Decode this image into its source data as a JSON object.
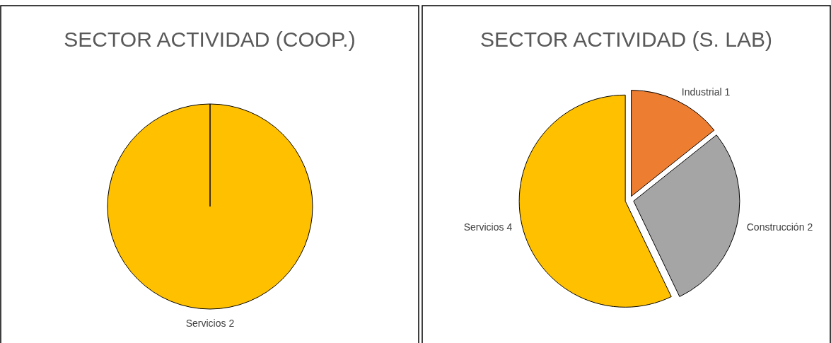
{
  "chart_data": [
    {
      "type": "pie",
      "title": "SECTOR ACTIVIDAD (COOP.)",
      "categories": [
        "Servicios"
      ],
      "values": [
        2
      ],
      "colors": [
        "#ffc000"
      ],
      "data_labels": true
    },
    {
      "type": "pie",
      "title": "SECTOR ACTIVIDAD (S. LAB)",
      "categories": [
        "Industrial",
        "Construcción",
        "Servicios"
      ],
      "values": [
        1,
        2,
        4
      ],
      "colors": [
        "#ed7d31",
        "#a5a5a5",
        "#ffc000"
      ],
      "data_labels": true
    }
  ]
}
